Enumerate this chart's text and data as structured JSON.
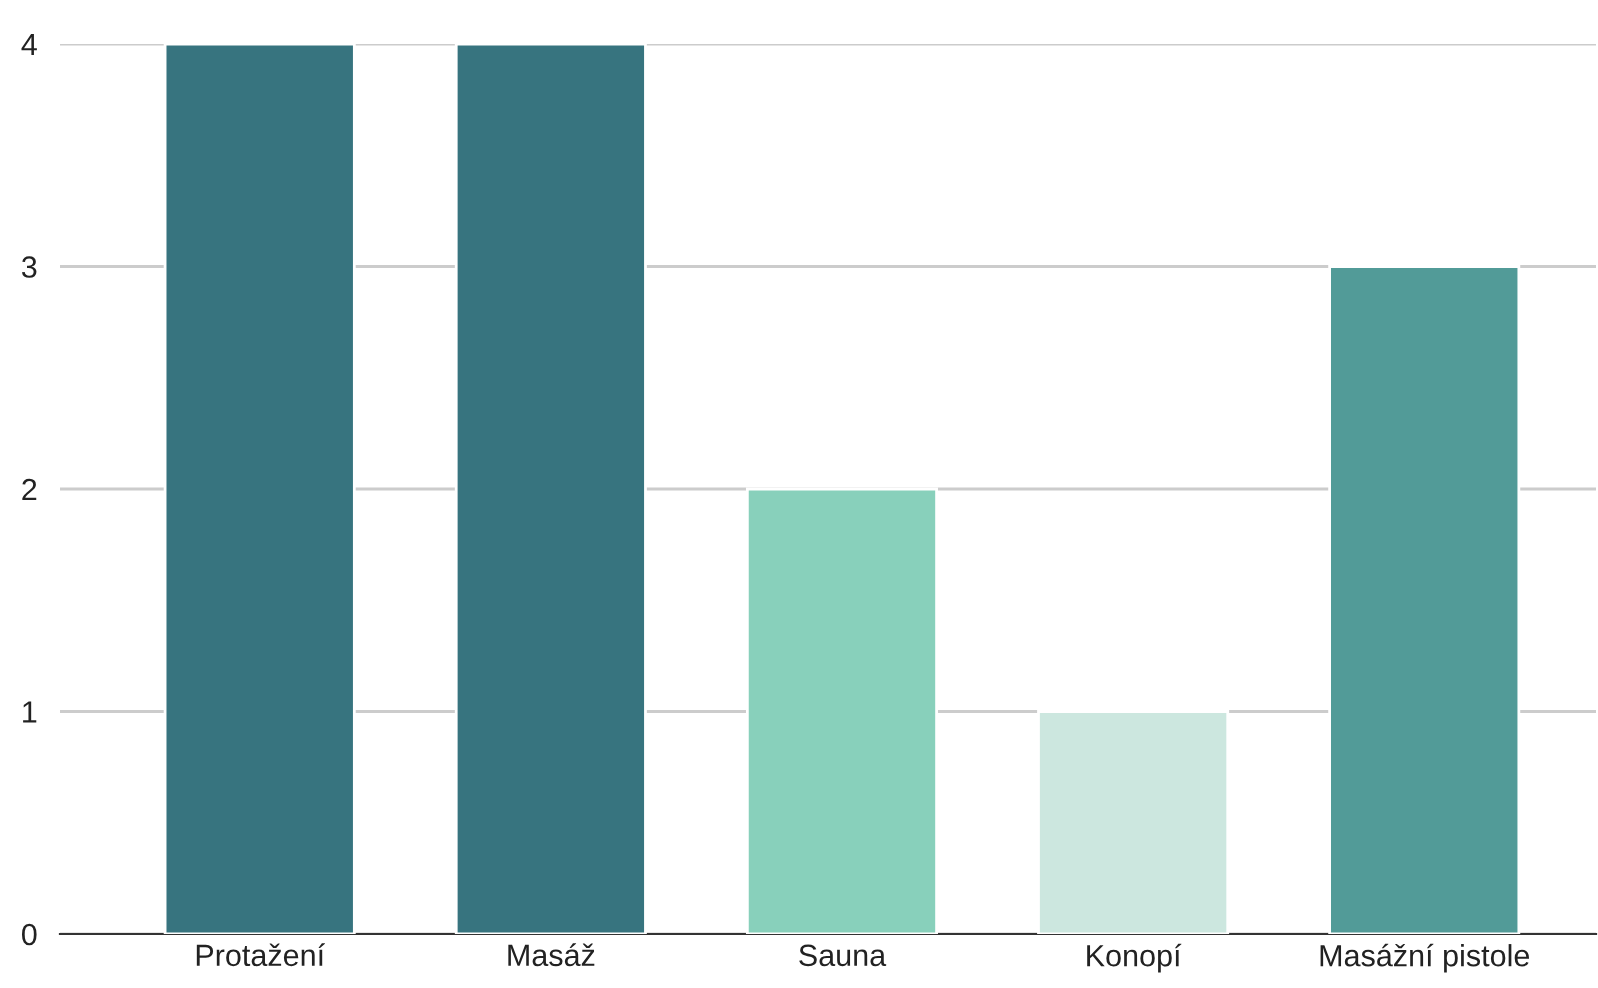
{
  "chart_data": {
    "type": "bar",
    "categories": [
      "Protažení",
      "Masáž",
      "Sauna",
      "Konopí",
      "Masážní pistole"
    ],
    "values": [
      4,
      4,
      2,
      1,
      3
    ],
    "colors": [
      "#37747f",
      "#37747f",
      "#88d0bb",
      "#cce7df",
      "#529b98"
    ],
    "ylim": [
      0,
      4
    ],
    "yticks": [
      0,
      1,
      2,
      3,
      4
    ],
    "grid": "y",
    "legend": false
  }
}
